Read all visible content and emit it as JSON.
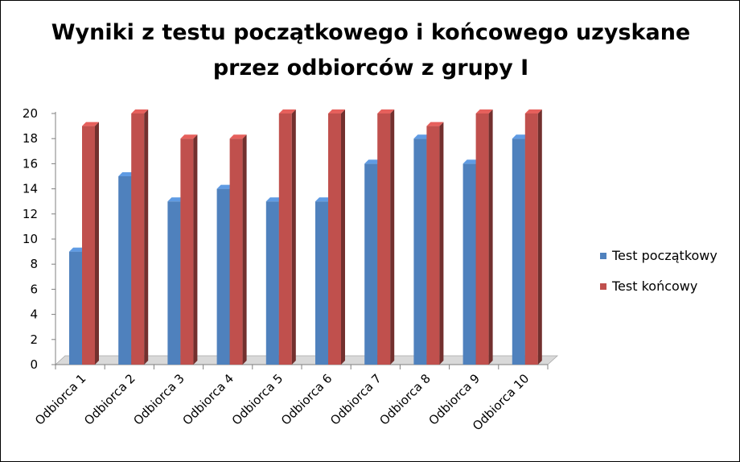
{
  "chart_data": {
    "type": "bar",
    "title_lines": [
      "Wyniki z testu początkowego i końcowego uzyskane",
      "przez odbiorców z grupy I"
    ],
    "categories": [
      "Odbiorca 1",
      "Odbiorca 2",
      "Odbiorca 3",
      "Odbiorca 4",
      "Odbiorca 5",
      "Odbiorca 6",
      "Odbiorca 7",
      "Odbiorca 8",
      "Odbiorca 9",
      "Odbiorca 10"
    ],
    "series": [
      {
        "name": "Test początkowy",
        "color": "#4F81BD",
        "values": [
          9,
          15,
          13,
          14,
          13,
          13,
          16,
          18,
          16,
          18
        ]
      },
      {
        "name": "Test końcowy",
        "color": "#C0504D",
        "values": [
          19,
          20,
          18,
          18,
          20,
          20,
          20,
          19,
          20,
          20
        ]
      }
    ],
    "yticks": [
      "0",
      "2",
      "4",
      "6",
      "8",
      "10",
      "12",
      "14",
      "16",
      "18",
      "20"
    ],
    "ylim": [
      0,
      20
    ],
    "legend_position": "right",
    "grid": false,
    "style": "3d-column"
  }
}
